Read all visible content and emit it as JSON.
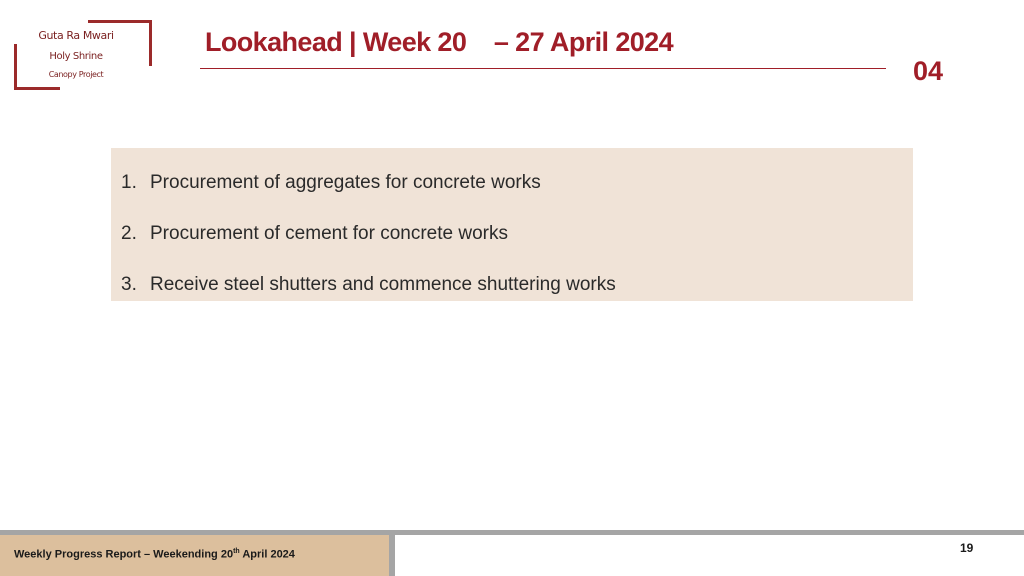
{
  "logo": {
    "line1": "Guta Ra Mwari",
    "line2": "Holy Shrine",
    "line3": "Canopy Project",
    "brand_color": "#9b2a2a"
  },
  "header": {
    "title": "Lookahead | Week 20    – 27 April 2024",
    "section_number": "04",
    "accent_color": "#a01e28"
  },
  "content": {
    "background_color": "#f0e3d7",
    "items": [
      {
        "number": "1.",
        "text": "Procurement of aggregates for concrete works"
      },
      {
        "number": "2.",
        "text": "Procurement of cement for concrete works"
      },
      {
        "number": "3.",
        "text": "Receive steel shutters and commence shuttering works"
      }
    ]
  },
  "footer": {
    "report_prefix": "Weekly Progress Report – Weekending 20",
    "report_sup": "th",
    "report_suffix": " April 2024",
    "page_number": "19",
    "panel_color": "#dcbf9d"
  }
}
